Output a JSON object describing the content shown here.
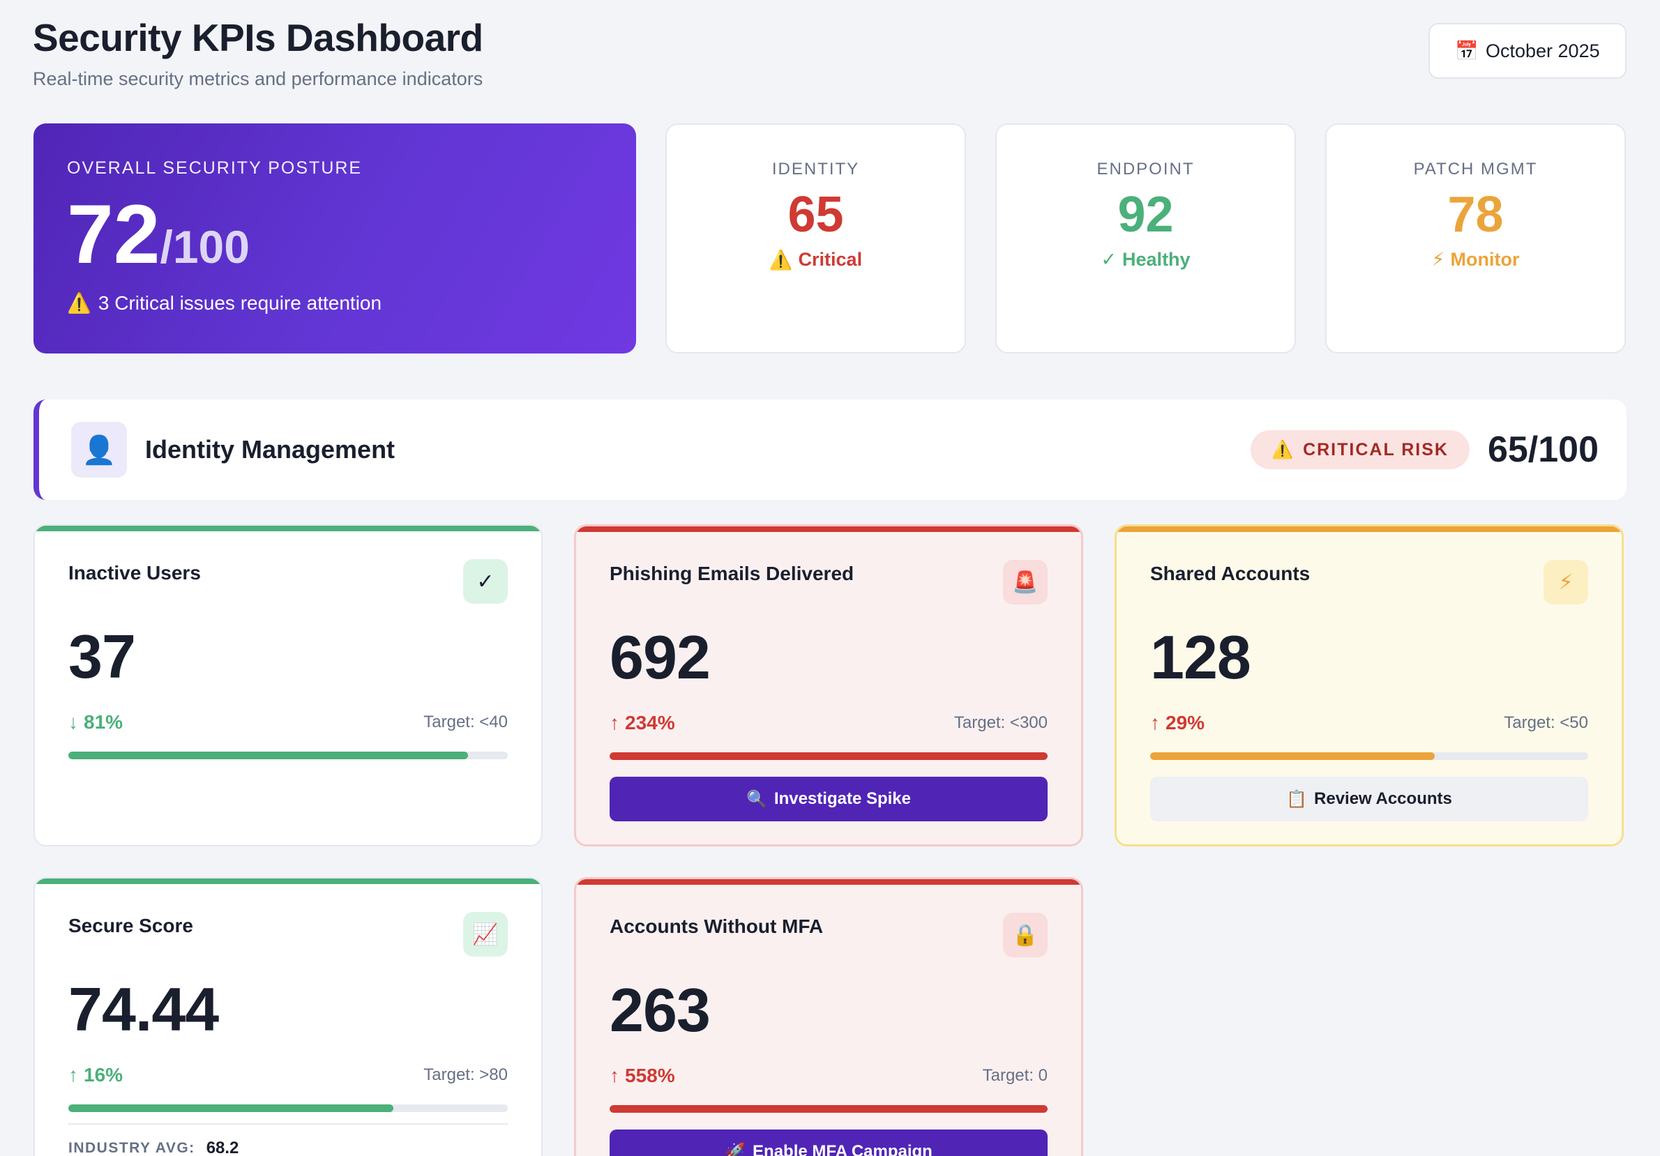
{
  "header": {
    "title": "Security KPIs Dashboard",
    "subtitle": "Real-time security metrics and performance indicators",
    "date_icon": "📅",
    "date": "October 2025"
  },
  "posture": {
    "label": "OVERALL SECURITY POSTURE",
    "score": "72",
    "out_of": "/100",
    "note_icon": "⚠️",
    "note": "3 Critical issues require attention"
  },
  "categories": [
    {
      "label": "IDENTITY",
      "score": "65",
      "status_icon": "⚠️",
      "status": "Critical",
      "color": "#cf3a33"
    },
    {
      "label": "ENDPOINT",
      "score": "92",
      "status_icon": "✓",
      "status": "Healthy",
      "color": "#4bb07a"
    },
    {
      "label": "PATCH MGMT",
      "score": "78",
      "status_icon": "⚡",
      "status": "Monitor",
      "color": "#eba43a"
    }
  ],
  "section": {
    "icon": "👤",
    "name": "Identity Management",
    "badge_icon": "⚠️",
    "badge": "CRITICAL RISK",
    "score": "65/100"
  },
  "kpis": [
    {
      "title": "Inactive Users",
      "icon": "✓",
      "icon_name": "check-icon",
      "value": "37",
      "delta_arrow": "↓",
      "delta": "81%",
      "target": "Target: <40",
      "progress": 0.91,
      "tone": "green"
    },
    {
      "title": "Phishing Emails Delivered",
      "icon": "🚨",
      "icon_name": "siren-icon",
      "value": "692",
      "delta_arrow": "↑",
      "delta": "234%",
      "target": "Target: <300",
      "progress": 1.0,
      "tone": "red",
      "action_icon": "🔍",
      "action": "Investigate Spike",
      "action_style": "primary"
    },
    {
      "title": "Shared Accounts",
      "icon": "⚡",
      "icon_name": "lightning-icon",
      "value": "128",
      "delta_arrow": "↑",
      "delta": "29%",
      "target": "Target: <50",
      "progress": 0.65,
      "tone": "amber",
      "action_icon": "📋",
      "action": "Review Accounts",
      "action_style": "neutral"
    },
    {
      "title": "Secure Score",
      "icon": "📈",
      "icon_name": "chart-up-icon",
      "value": "74.44",
      "delta_arrow": "↑",
      "delta": "16%",
      "target": "Target: >80",
      "progress": 0.74,
      "tone": "green",
      "industry_label": "INDUSTRY AVG:",
      "industry_value": "68.2"
    },
    {
      "title": "Accounts Without MFA",
      "icon": "🔒",
      "icon_name": "lock-icon",
      "value": "263",
      "delta_arrow": "↑",
      "delta": "558%",
      "target": "Target: 0",
      "progress": 1.0,
      "tone": "red",
      "action_icon": "🚀",
      "action": "Enable MFA Campaign",
      "action_style": "primary"
    }
  ],
  "colors": {
    "accent": "#6236d4",
    "red": "#cf3a33",
    "green": "#4bb07a",
    "amber": "#eba43a"
  }
}
